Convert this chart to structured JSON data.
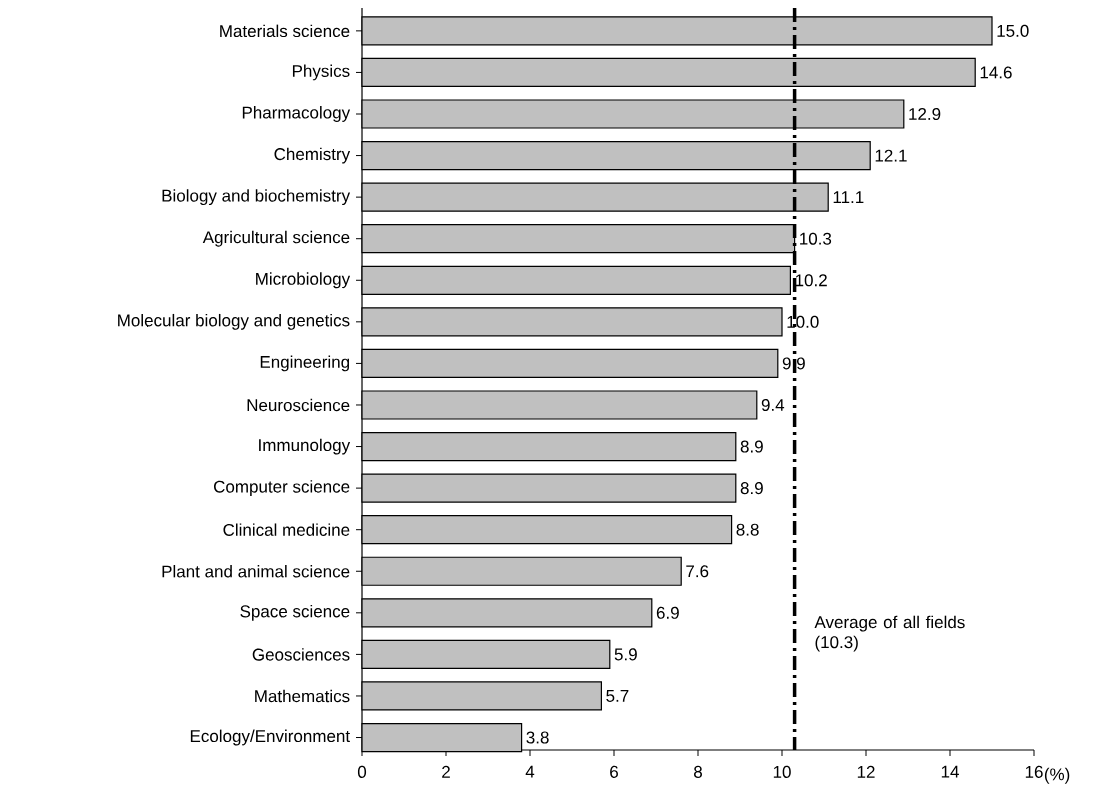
{
  "chart_data": {
    "type": "bar",
    "orientation": "horizontal",
    "xlabel": "(%)",
    "categories": [
      "Materials science",
      "Physics",
      "Pharmacology",
      "Chemistry",
      "Biology and biochemistry",
      "Agricultural science",
      "Microbiology",
      "Molecular biology and genetics",
      "Engineering",
      "Neuroscience",
      "Immunology",
      "Computer science",
      "Clinical medicine",
      "Plant and animal science",
      "Space science",
      "Geosciences",
      "Mathematics",
      "Ecology/Environment"
    ],
    "values": [
      15.0,
      14.6,
      12.9,
      12.1,
      11.1,
      10.3,
      10.2,
      10.0,
      9.9,
      9.4,
      8.9,
      8.9,
      8.8,
      7.6,
      6.9,
      5.9,
      5.7,
      3.8
    ],
    "color": "#c0c0c0",
    "value_labels": [
      "15.0",
      "14.6",
      "12.9",
      "12.1",
      "11.1",
      "10.3",
      "10.2",
      "10.0",
      "9.9",
      "9.4",
      "8.9",
      "8.9",
      "8.8",
      "7.6",
      "6.9",
      "5.9",
      "5.7",
      "3.8"
    ],
    "xlim": [
      0,
      16
    ],
    "xticks": [
      0,
      2,
      4,
      6,
      8,
      10,
      12,
      14,
      16
    ],
    "ref_lines": [
      {
        "axis": "x",
        "value": 10.3,
        "label": "Average of all fields (10.3)",
        "color": "#000000",
        "line_style": "dashdot"
      }
    ],
    "grid": false
  }
}
